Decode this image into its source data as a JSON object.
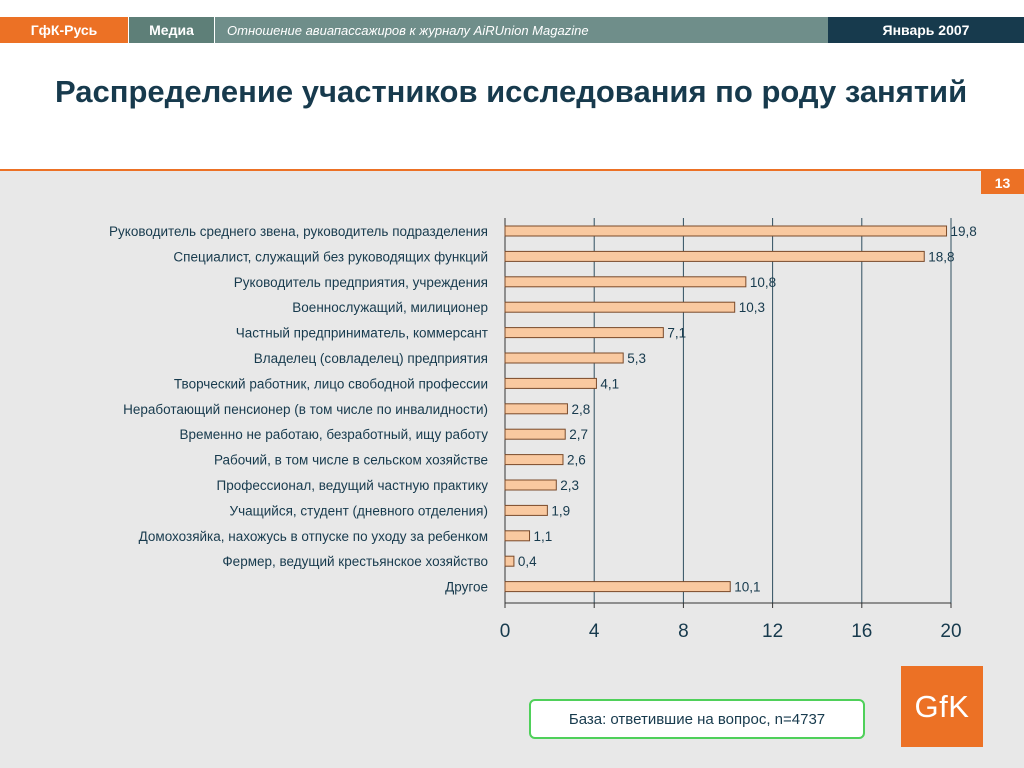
{
  "header": {
    "brand": "ГфК-Русь",
    "section": "Медиа",
    "subject": "Отношение авиапассажиров к журналу AiRUnion Magazine",
    "date": "Январь 2007"
  },
  "title": "Распределение участников исследования по роду занятий",
  "page_number": "13",
  "base_note": "База: ответившие на вопрос, n=4737",
  "logo_text": "GfK",
  "colors": {
    "accent": "#ec7125",
    "section_green": "#5e7f78",
    "subject_green": "#6f8e8a",
    "navy": "#173a4d",
    "panel": "#e8e8e8",
    "bar_fill": "#f9c9a0",
    "bar_stroke": "#7a4a2a",
    "gridline": "#2f4f5f",
    "base_border": "#4fd05a"
  },
  "chart_data": {
    "type": "bar",
    "orientation": "horizontal",
    "categories": [
      "Руководитель среднего звена, руководитель подразделения",
      "Специалист, служащий без руководящих функций",
      "Руководитель предприятия, учреждения",
      "Военнослужащий, милиционер",
      "Частный предприниматель, коммерсант",
      "Владелец (совладелец) предприятия",
      "Творческий работник, лицо свободной профессии",
      "Неработающий пенсионер (в том числе по инвалидности)",
      "Временно не работаю, безработный, ищу работу",
      "Рабочий, в том числе в сельском хозяйстве",
      "Профессионал, ведущий частную практику",
      "Учащийся, студент (дневного отделения)",
      "Домохозяйка, нахожусь в отпуске по уходу за ребенком",
      "Фермер, ведущий крестьянское хозяйство",
      "Другое"
    ],
    "values": [
      19.8,
      18.8,
      10.8,
      10.3,
      7.1,
      5.3,
      4.1,
      2.8,
      2.7,
      2.6,
      2.3,
      1.9,
      1.1,
      0.4,
      10.1
    ],
    "value_labels": [
      "19,8",
      "18,8",
      "10,8",
      "10,3",
      "7,1",
      "5,3",
      "4,1",
      "2,8",
      "2,7",
      "2,6",
      "2,3",
      "1,9",
      "1,1",
      "0,4",
      "10,1"
    ],
    "xlim": [
      0,
      20
    ],
    "xticks": [
      0,
      4,
      8,
      12,
      16,
      20
    ],
    "xtick_labels": [
      "0",
      "4",
      "8",
      "12",
      "16",
      "20"
    ],
    "grid": "vertical",
    "title": "",
    "xlabel": "",
    "ylabel": ""
  }
}
